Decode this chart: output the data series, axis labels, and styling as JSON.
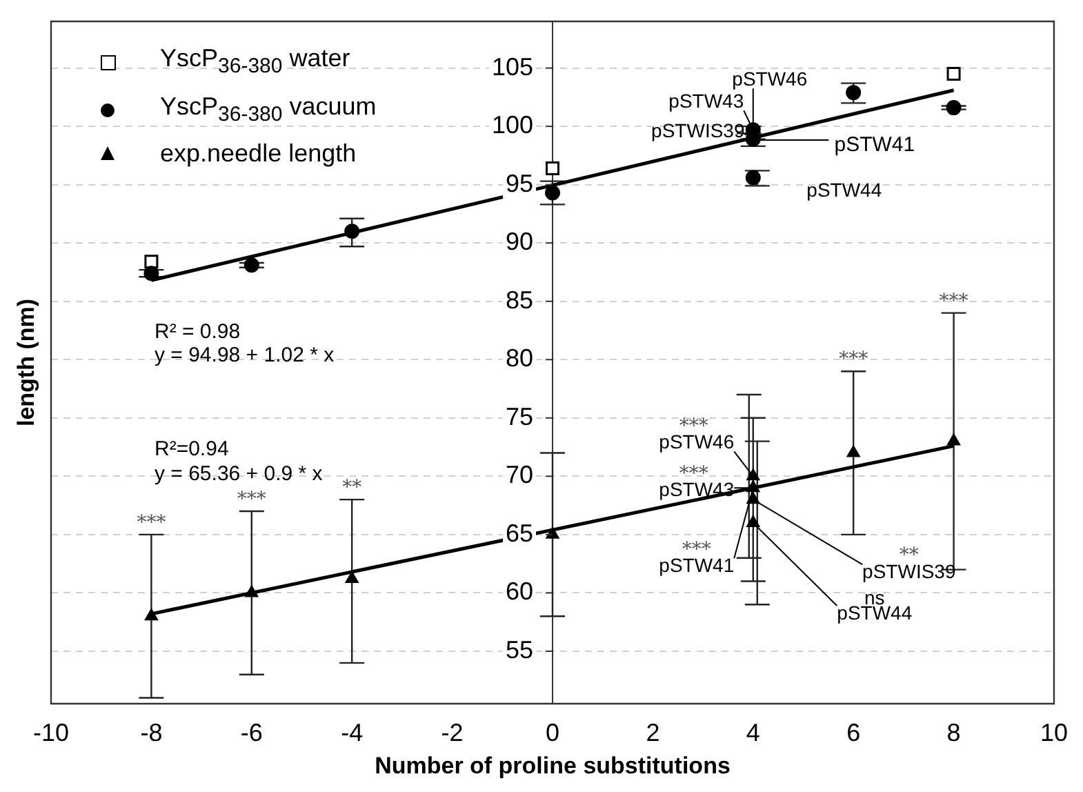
{
  "chart_data": {
    "type": "scatter",
    "xlabel": "Number of proline substitutions",
    "ylabel": "length (nm)",
    "xlim": [
      -10,
      10
    ],
    "xticks": [
      -10,
      -8,
      -6,
      -4,
      -2,
      0,
      2,
      4,
      6,
      8,
      10
    ],
    "ylim": [
      50.5,
      109
    ],
    "yticks": [
      55,
      60,
      65,
      70,
      75,
      80,
      85,
      90,
      95,
      100,
      105
    ],
    "grid": "y",
    "legend": "top left",
    "series": [
      {
        "name": "YscP$_{36-380}$ water",
        "type": "scatter",
        "marker": "square",
        "color": "#000000",
        "x": [
          -8,
          0,
          4,
          8
        ],
        "values": [
          88.4,
          96.4,
          null,
          104.5
        ]
      },
      {
        "name": "YscP$_{36-380}$ vacuum",
        "type": "scatter",
        "marker": "circle",
        "color": "#000000",
        "x": [
          -8,
          -6,
          -4,
          0,
          4,
          4,
          4,
          6,
          8
        ],
        "values": [
          87.4,
          88.1,
          91.0,
          94.3,
          99.7,
          98.9,
          95.6,
          102.9,
          101.6
        ],
        "errors": [
          0.3,
          0.2,
          [
            89.7,
            92.1
          ],
          [
            93.3,
            95.3
          ],
          0.3,
          [
            98.3,
            98.9
          ],
          [
            94.9,
            96.2
          ],
          [
            102.0,
            103.7
          ],
          0.15
        ]
      },
      {
        "name": "exp.needle length",
        "type": "scatter",
        "marker": "triangle",
        "color": "#000000",
        "x": [
          -8,
          -6,
          -4,
          0,
          4,
          4,
          4,
          4,
          6,
          8
        ],
        "values": [
          58,
          60,
          61.2,
          65,
          70,
          69,
          68,
          66,
          72,
          73
        ],
        "errors": [
          [
            51,
            65
          ],
          [
            53,
            67
          ],
          [
            54,
            68
          ],
          [
            58,
            72
          ],
          [
            63,
            77
          ],
          [
            61,
            75
          ],
          [
            59,
            73
          ],
          null,
          [
            65,
            79
          ],
          [
            62,
            84
          ]
        ]
      },
      {
        "type": "line",
        "marker": "none",
        "color": "#000000",
        "x": [
          -8,
          8
        ],
        "values": [
          86.8,
          103.1
        ]
      },
      {
        "type": "line",
        "marker": "none",
        "color": "#000000",
        "x": [
          -8,
          8
        ],
        "values": [
          58.2,
          72.6
        ]
      }
    ],
    "annotations": [
      "R² = 0.98",
      "y = 94.98 + 1.02 * x",
      "R²=0.94",
      "y = 65.36 + 0.9 * x",
      {
        "text": "pSTW46",
        "x": 4,
        "y": 99.7
      },
      {
        "text": "pSTW43",
        "x": 4,
        "y": 99.7
      },
      {
        "text": "pSTWIS39",
        "x": 4,
        "y": 99.3
      },
      "pSTW41",
      {
        "text": "pSTW44",
        "x": 4,
        "y": 95.6
      },
      {
        "text": "***",
        "x": -8,
        "y": 65
      },
      {
        "text": "***",
        "x": -6,
        "y": 67
      },
      {
        "text": "**",
        "x": -4,
        "y": 68
      },
      {
        "text": "***",
        "x": 6,
        "y": 79
      },
      {
        "text": "***",
        "x": 8,
        "y": 84
      },
      {
        "text": "pSTW46",
        "x": 4,
        "y": 70
      },
      "***",
      {
        "text": "pSTW43",
        "x": 4,
        "y": 69
      },
      "***",
      {
        "text": "pSTW41",
        "x": 4,
        "y": 69
      },
      "***",
      {
        "text": "pSTWIS39",
        "x": 4,
        "y": 68
      },
      "**",
      {
        "text": "pSTW44",
        "x": 4,
        "y": 66
      },
      "ns"
    ]
  }
}
